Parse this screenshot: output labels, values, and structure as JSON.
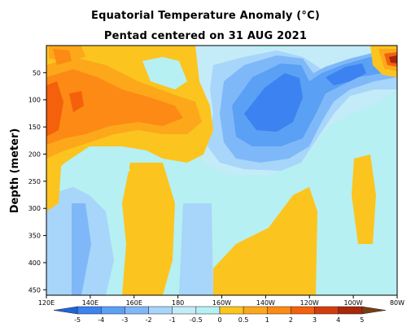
{
  "chart_data": {
    "type": "heatmap",
    "title": "Equatorial Temperature Anomaly (°C)",
    "subtitle": "Pentad centered on 31 AUG 2021",
    "xlabel": "",
    "ylabel": "Depth (meter)",
    "x_range": [
      "120E",
      "80W"
    ],
    "y_range_m": [
      0,
      460
    ],
    "x_ticks": [
      "120E",
      "140E",
      "160E",
      "180",
      "160W",
      "140W",
      "120W",
      "100W",
      "80W"
    ],
    "y_ticks": [
      50,
      100,
      150,
      200,
      250,
      300,
      350,
      400,
      450
    ],
    "y_reversed": true,
    "colorbar": {
      "labels": [
        "-5",
        "-4",
        "-3",
        "-2",
        "-1",
        "-0.5",
        "0",
        "0.5",
        "1",
        "2",
        "3",
        "4",
        "5"
      ],
      "levels": [
        -5,
        -4,
        -3,
        -2,
        -1,
        -0.5,
        0,
        0.5,
        1,
        2,
        3,
        4,
        5
      ],
      "colors": [
        "#1e64dc",
        "#3c82f0",
        "#5aa0f5",
        "#7fb8f8",
        "#a8d5fa",
        "#c4ebf8",
        "#b6f0f2",
        "#fcc41e",
        "#fca81a",
        "#fc8a14",
        "#f4600c",
        "#d43c0c",
        "#a8280a",
        "#7a3c14"
      ]
    },
    "features": [
      {
        "name": "warm anomaly western/central Pacific 70-170m",
        "value_range": [
          1,
          3
        ],
        "lon_range": [
          "120E",
          "175E"
        ]
      },
      {
        "name": "cold anomaly central-eastern Pacific 50-230m",
        "value_range": [
          -3,
          -1
        ],
        "lon_range": [
          "160W",
          "110W"
        ]
      },
      {
        "name": "warm anomaly near surface far eastern Pacific",
        "value_range": [
          2,
          4
        ],
        "lon_range": [
          "83W",
          "80W"
        ]
      },
      {
        "name": "weak warm anomaly at depth 250-450m",
        "value_range": [
          0,
          0.5
        ],
        "lon_range": [
          "160W",
          "120W"
        ]
      }
    ]
  }
}
